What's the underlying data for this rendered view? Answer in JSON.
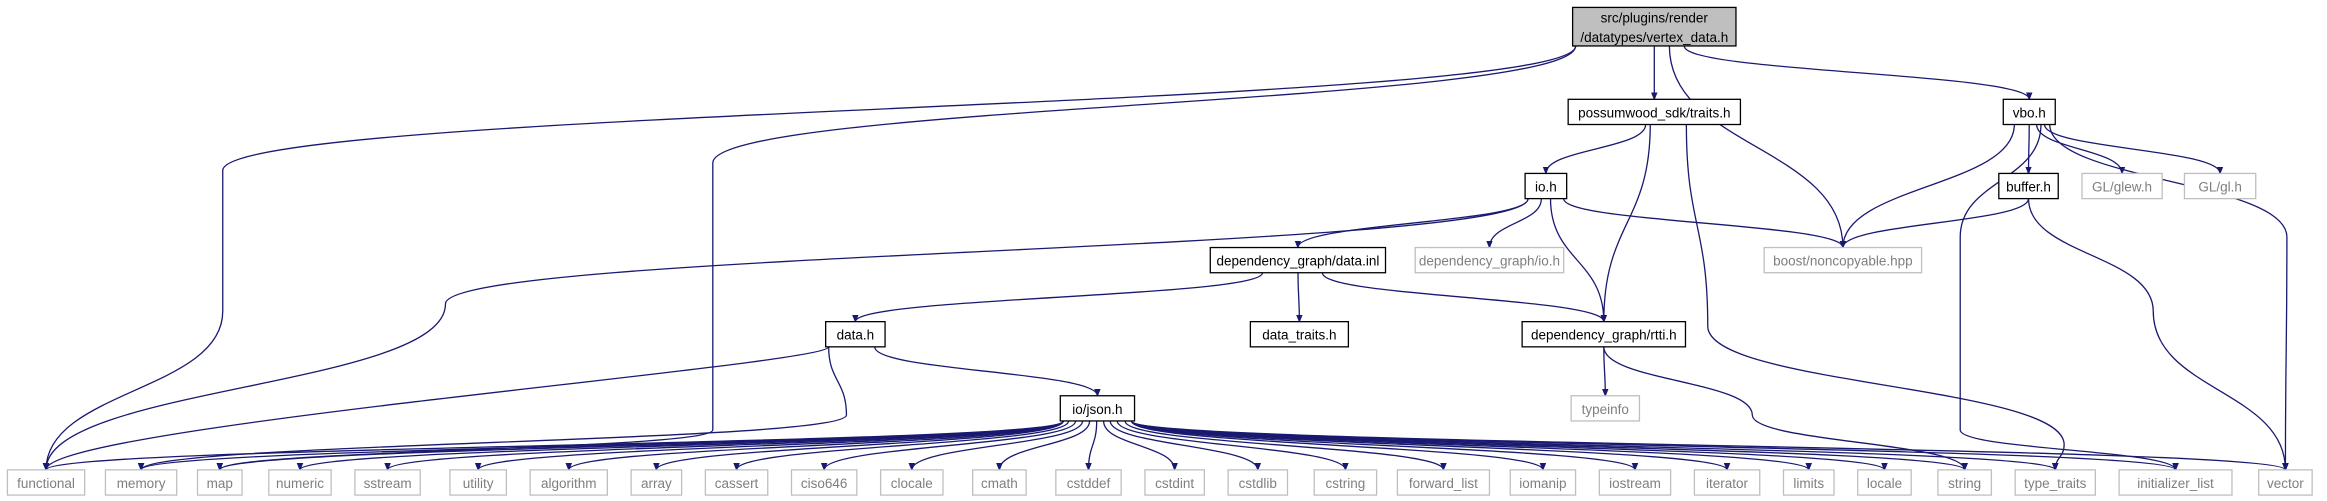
{
  "graph": {
    "root": "root",
    "colors": {
      "edge": "#191970",
      "root_fill": "#bfbfbf",
      "documented_stroke": "#000000",
      "external_stroke": "#bfbfbf",
      "documented_text": "#000000",
      "external_text": "#7f7f7f"
    },
    "nodes": [
      {
        "id": "root",
        "lines": [
          "src/plugins/render",
          "/datatypes/vertex_data.h"
        ],
        "kind": "root"
      },
      {
        "id": "traits",
        "lines": [
          "possumwood_sdk/traits.h"
        ],
        "kind": "documented"
      },
      {
        "id": "vbo",
        "lines": [
          "vbo.h"
        ],
        "kind": "documented"
      },
      {
        "id": "io",
        "lines": [
          "io.h"
        ],
        "kind": "documented"
      },
      {
        "id": "buffer",
        "lines": [
          "buffer.h"
        ],
        "kind": "documented"
      },
      {
        "id": "glew",
        "lines": [
          "GL/glew.h"
        ],
        "kind": "external"
      },
      {
        "id": "gl",
        "lines": [
          "GL/gl.h"
        ],
        "kind": "external"
      },
      {
        "id": "dgdata",
        "lines": [
          "dependency_graph/data.inl"
        ],
        "kind": "documented"
      },
      {
        "id": "dgio",
        "lines": [
          "dependency_graph/io.h"
        ],
        "kind": "external"
      },
      {
        "id": "noncopy",
        "lines": [
          "boost/noncopyable.hpp"
        ],
        "kind": "external"
      },
      {
        "id": "datah",
        "lines": [
          "data.h"
        ],
        "kind": "documented"
      },
      {
        "id": "dtraits",
        "lines": [
          "data_traits.h"
        ],
        "kind": "documented"
      },
      {
        "id": "rtti",
        "lines": [
          "dependency_graph/rtti.h"
        ],
        "kind": "documented"
      },
      {
        "id": "typeinfo",
        "lines": [
          "typeinfo"
        ],
        "kind": "external"
      },
      {
        "id": "json",
        "lines": [
          "io/json.h"
        ],
        "kind": "documented"
      },
      {
        "id": "functional",
        "lines": [
          "functional"
        ],
        "kind": "external"
      },
      {
        "id": "memory",
        "lines": [
          "memory"
        ],
        "kind": "external"
      },
      {
        "id": "map",
        "lines": [
          "map"
        ],
        "kind": "external"
      },
      {
        "id": "numeric",
        "lines": [
          "numeric"
        ],
        "kind": "external"
      },
      {
        "id": "sstream",
        "lines": [
          "sstream"
        ],
        "kind": "external"
      },
      {
        "id": "utility",
        "lines": [
          "utility"
        ],
        "kind": "external"
      },
      {
        "id": "algorithm",
        "lines": [
          "algorithm"
        ],
        "kind": "external"
      },
      {
        "id": "array",
        "lines": [
          "array"
        ],
        "kind": "external"
      },
      {
        "id": "cassert",
        "lines": [
          "cassert"
        ],
        "kind": "external"
      },
      {
        "id": "ciso646",
        "lines": [
          "ciso646"
        ],
        "kind": "external"
      },
      {
        "id": "clocale",
        "lines": [
          "clocale"
        ],
        "kind": "external"
      },
      {
        "id": "cmath",
        "lines": [
          "cmath"
        ],
        "kind": "external"
      },
      {
        "id": "cstddef",
        "lines": [
          "cstddef"
        ],
        "kind": "external"
      },
      {
        "id": "cstdint",
        "lines": [
          "cstdint"
        ],
        "kind": "external"
      },
      {
        "id": "cstdlib",
        "lines": [
          "cstdlib"
        ],
        "kind": "external"
      },
      {
        "id": "cstring",
        "lines": [
          "cstring"
        ],
        "kind": "external"
      },
      {
        "id": "forward_list",
        "lines": [
          "forward_list"
        ],
        "kind": "external"
      },
      {
        "id": "iomanip",
        "lines": [
          "iomanip"
        ],
        "kind": "external"
      },
      {
        "id": "iostream",
        "lines": [
          "iostream"
        ],
        "kind": "external"
      },
      {
        "id": "iterator",
        "lines": [
          "iterator"
        ],
        "kind": "external"
      },
      {
        "id": "limits",
        "lines": [
          "limits"
        ],
        "kind": "external"
      },
      {
        "id": "locale",
        "lines": [
          "locale"
        ],
        "kind": "external"
      },
      {
        "id": "string",
        "lines": [
          "string"
        ],
        "kind": "external"
      },
      {
        "id": "type_traits",
        "lines": [
          "type_traits"
        ],
        "kind": "external"
      },
      {
        "id": "initializer_list",
        "lines": [
          "initializer_list"
        ],
        "kind": "external"
      },
      {
        "id": "vector",
        "lines": [
          "vector"
        ],
        "kind": "external"
      }
    ],
    "edges": [
      [
        "root",
        "functional"
      ],
      [
        "root",
        "map"
      ],
      [
        "root",
        "traits"
      ],
      [
        "root",
        "noncopy"
      ],
      [
        "root",
        "vbo"
      ],
      [
        "traits",
        "io"
      ],
      [
        "traits",
        "rtti"
      ],
      [
        "traits",
        "type_traits"
      ],
      [
        "vbo",
        "noncopy"
      ],
      [
        "vbo",
        "buffer"
      ],
      [
        "vbo",
        "glew"
      ],
      [
        "vbo",
        "gl"
      ],
      [
        "vbo",
        "initializer_list"
      ],
      [
        "vbo",
        "vector"
      ],
      [
        "buffer",
        "noncopy"
      ],
      [
        "buffer",
        "vector"
      ],
      [
        "io",
        "functional"
      ],
      [
        "io",
        "dgdata"
      ],
      [
        "io",
        "dgio"
      ],
      [
        "io",
        "rtti"
      ],
      [
        "io",
        "noncopy"
      ],
      [
        "dgdata",
        "datah"
      ],
      [
        "dgdata",
        "dtraits"
      ],
      [
        "dgdata",
        "rtti"
      ],
      [
        "datah",
        "json"
      ],
      [
        "datah",
        "functional"
      ],
      [
        "datah",
        "memory"
      ],
      [
        "rtti",
        "typeinfo"
      ],
      [
        "rtti",
        "string"
      ],
      [
        "json",
        "functional"
      ],
      [
        "json",
        "memory"
      ],
      [
        "json",
        "map"
      ],
      [
        "json",
        "numeric"
      ],
      [
        "json",
        "sstream"
      ],
      [
        "json",
        "utility"
      ],
      [
        "json",
        "algorithm"
      ],
      [
        "json",
        "array"
      ],
      [
        "json",
        "cassert"
      ],
      [
        "json",
        "ciso646"
      ],
      [
        "json",
        "clocale"
      ],
      [
        "json",
        "cmath"
      ],
      [
        "json",
        "cstddef"
      ],
      [
        "json",
        "cstdint"
      ],
      [
        "json",
        "cstdlib"
      ],
      [
        "json",
        "cstring"
      ],
      [
        "json",
        "forward_list"
      ],
      [
        "json",
        "iomanip"
      ],
      [
        "json",
        "iostream"
      ],
      [
        "json",
        "iterator"
      ],
      [
        "json",
        "limits"
      ],
      [
        "json",
        "locale"
      ],
      [
        "json",
        "string"
      ],
      [
        "json",
        "type_traits"
      ],
      [
        "json",
        "initializer_list"
      ],
      [
        "json",
        "vector"
      ]
    ]
  }
}
